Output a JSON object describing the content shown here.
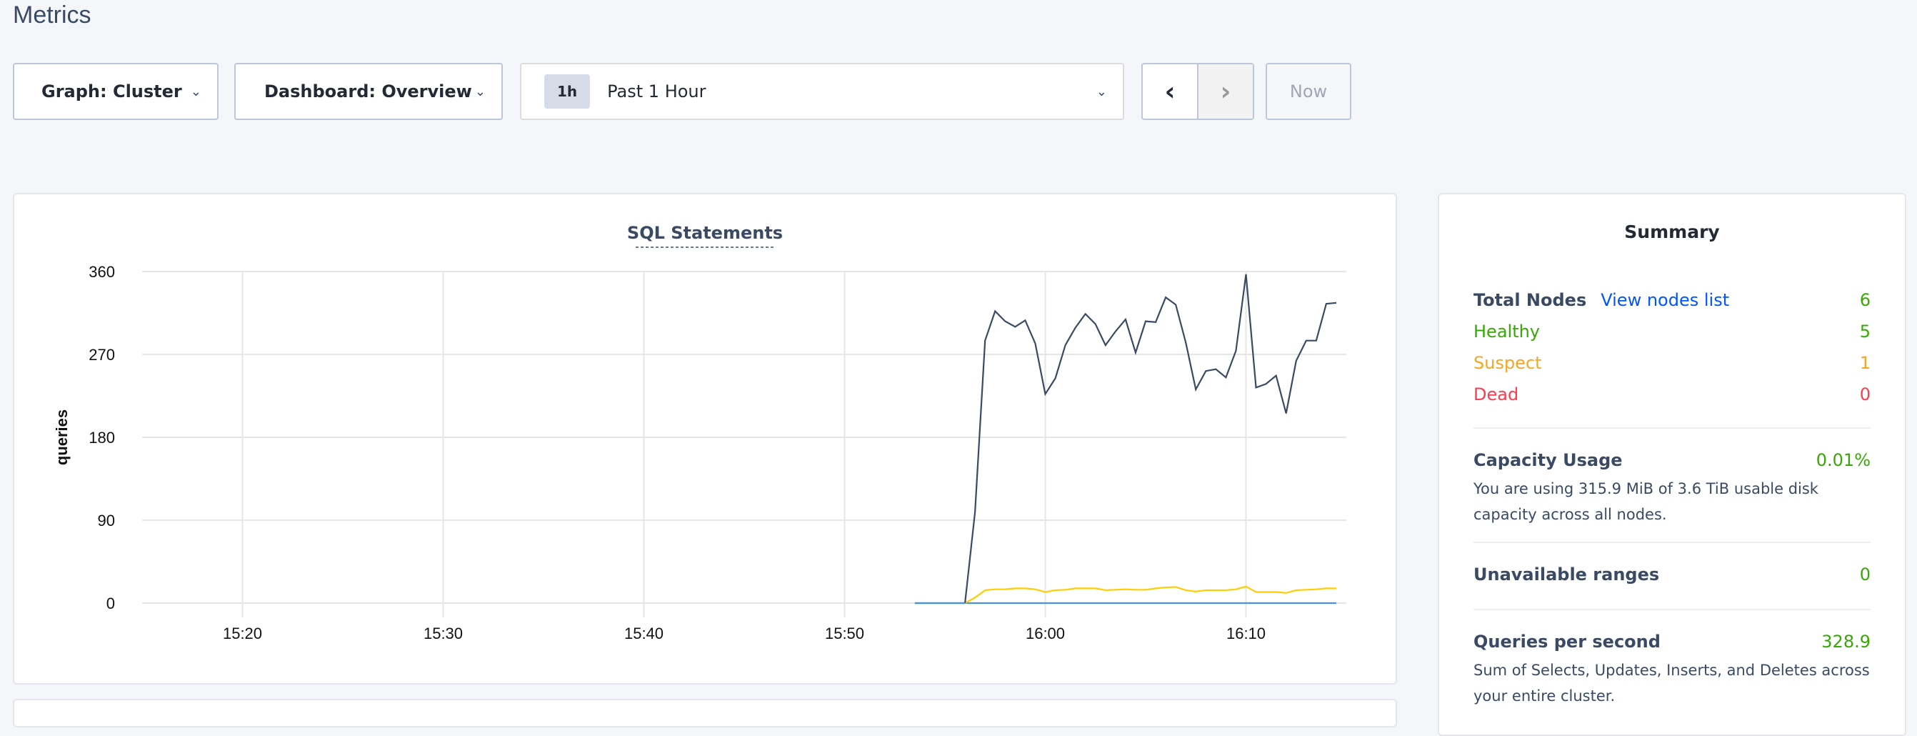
{
  "page": {
    "title": "Metrics"
  },
  "toolbar": {
    "graph_label": "Graph: Cluster",
    "dashboard_label": "Dashboard: Overview",
    "time_badge": "1h",
    "time_label": "Past 1 Hour",
    "prev": "‹",
    "next": "›",
    "now_label": "Now"
  },
  "summary": {
    "title": "Summary",
    "total_nodes_label": "Total Nodes",
    "view_nodes_link": "View nodes list",
    "total_nodes": "6",
    "healthy_label": "Healthy",
    "healthy": "5",
    "suspect_label": "Suspect",
    "suspect": "1",
    "dead_label": "Dead",
    "dead": "0",
    "capacity_label": "Capacity Usage",
    "capacity_value": "0.01%",
    "capacity_desc": "You are using 315.9 MiB of 3.6 TiB usable disk capacity across all nodes.",
    "unavailable_label": "Unavailable ranges",
    "unavailable_value": "0",
    "qps_label": "Queries per second",
    "qps_value": "328.9",
    "qps_desc": "Sum of Selects, Updates, Inserts, and Deletes across your entire cluster.",
    "colors": {
      "healthy": "#37a806",
      "suspect": "#f5a623",
      "dead": "#ff3b4e",
      "link": "#0055ff"
    }
  },
  "chart_data": {
    "type": "line",
    "title": "SQL Statements",
    "ylabel": "queries",
    "xlabel": "",
    "xlim": [
      "15:15",
      "16:15"
    ],
    "ylim": [
      0,
      360
    ],
    "grid": true,
    "yticks": [
      "0",
      "90",
      "180",
      "270",
      "360"
    ],
    "xticks": [
      "15:20",
      "15:30",
      "15:40",
      "15:50",
      "16:00",
      "16:10"
    ],
    "x_start": "15:56:00",
    "x_step_seconds": 30,
    "series": [
      {
        "color": "#3a4a64",
        "values": [
          0,
          99,
          285,
          317,
          306,
          300,
          307,
          282,
          227,
          244,
          280,
          299,
          314,
          303,
          280,
          295,
          308,
          272,
          306,
          305,
          332,
          324,
          283,
          232,
          252,
          254,
          245,
          274,
          357,
          234,
          238,
          247,
          206,
          263,
          285,
          285,
          325,
          326
        ]
      },
      {
        "color": "#ffcd02",
        "values": [
          0,
          6,
          14,
          15,
          15,
          16,
          16,
          15,
          12,
          14,
          14.5,
          16,
          16,
          16,
          14,
          14.5,
          15,
          14.5,
          14.5,
          16,
          17,
          17.5,
          14,
          12.5,
          14,
          14,
          14,
          15,
          18,
          12,
          12,
          12,
          11,
          14,
          14.5,
          15,
          16,
          16
        ]
      },
      {
        "color": "#4a90e2",
        "x_range": [
          "15:53:30",
          "16:14:30"
        ],
        "constant": 0
      }
    ]
  }
}
